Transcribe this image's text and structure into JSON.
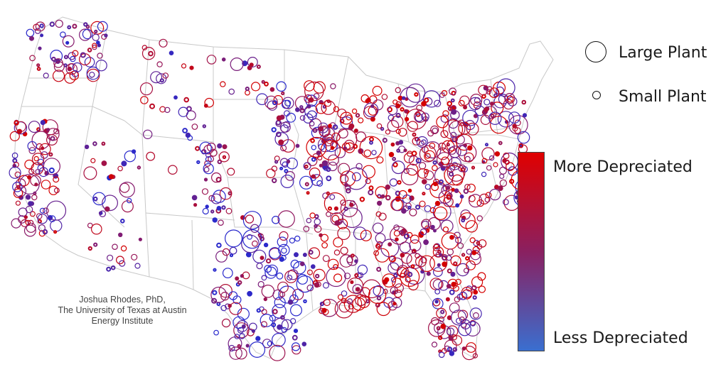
{
  "legend": {
    "large_label": "Large Plant",
    "small_label": "Small Plant",
    "more_label": "More Depreciated",
    "less_label": "Less Depreciated",
    "color_high": "#e00000",
    "color_low": "#3a6fd0"
  },
  "credit": {
    "line1": "Joshua Rhodes, PhD,",
    "line2": "The University of Texas at Austin",
    "line3": "Energy Institute"
  },
  "colors": {
    "more_depreciated": "#d40000",
    "mid": "#8a1a6a",
    "less_depreciated": "#2a2acc",
    "border": "#c8c8c8"
  }
}
